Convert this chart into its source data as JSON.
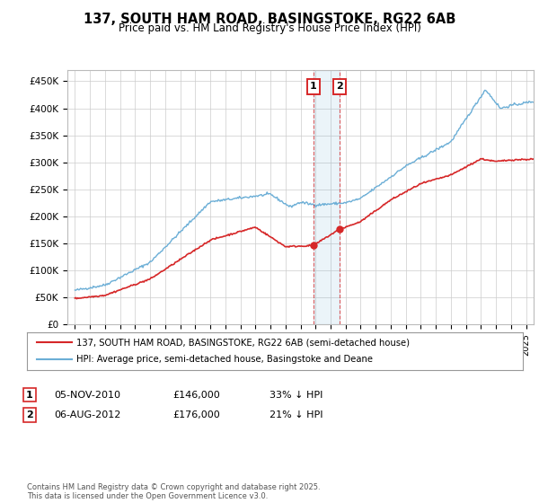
{
  "title": "137, SOUTH HAM ROAD, BASINGSTOKE, RG22 6AB",
  "subtitle": "Price paid vs. HM Land Registry's House Price Index (HPI)",
  "legend_line1": "137, SOUTH HAM ROAD, BASINGSTOKE, RG22 6AB (semi-detached house)",
  "legend_line2": "HPI: Average price, semi-detached house, Basingstoke and Deane",
  "annotation1_date": "05-NOV-2010",
  "annotation1_price": "£146,000",
  "annotation1_pct": "33% ↓ HPI",
  "annotation2_date": "06-AUG-2012",
  "annotation2_price": "£176,000",
  "annotation2_pct": "21% ↓ HPI",
  "footer": "Contains HM Land Registry data © Crown copyright and database right 2025.\nThis data is licensed under the Open Government Licence v3.0.",
  "hpi_color": "#6baed6",
  "price_color": "#d62728",
  "purchase1_x": 2010.84,
  "purchase1_y": 146000,
  "purchase2_x": 2012.59,
  "purchase2_y": 176000,
  "ylim": [
    0,
    470000
  ],
  "xlim": [
    1994.5,
    2025.5
  ],
  "yticks": [
    0,
    50000,
    100000,
    150000,
    200000,
    250000,
    300000,
    350000,
    400000,
    450000
  ],
  "ytick_labels": [
    "£0",
    "£50K",
    "£100K",
    "£150K",
    "£200K",
    "£250K",
    "£300K",
    "£350K",
    "£400K",
    "£450K"
  ],
  "background_color": "#ffffff",
  "grid_color": "#cccccc"
}
